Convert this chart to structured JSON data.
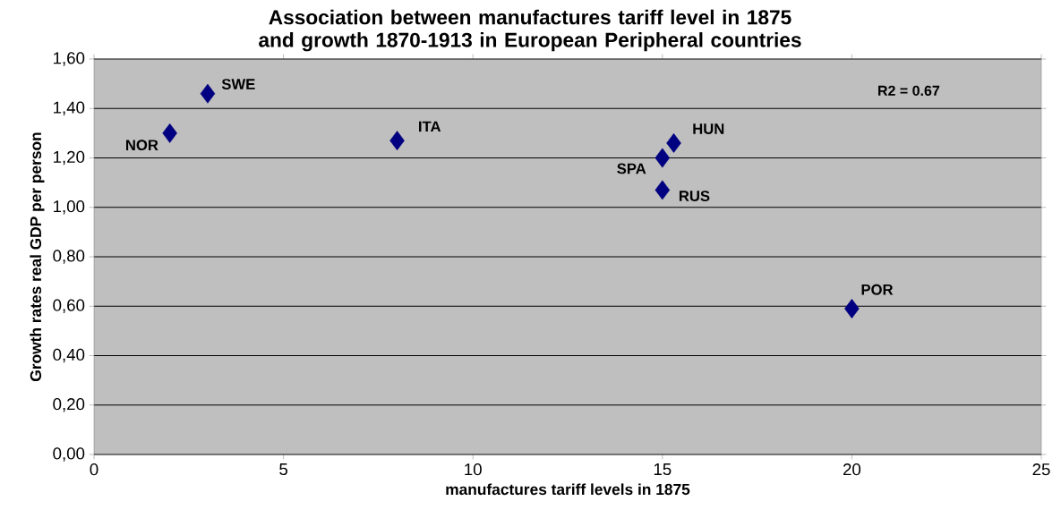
{
  "chart_data": {
    "type": "scatter",
    "title": "Association between manufactures tariff level in 1875 and growth 1870-1913 in European Peripheral countries",
    "xlabel": "manufactures tariff levels in 1875",
    "ylabel": "Growth rates real GDP per person",
    "x": [
      2,
      3,
      8,
      15.3,
      15,
      15,
      20
    ],
    "series": [
      {
        "color": "#000080",
        "values": [
          1.3,
          1.46,
          1.27,
          1.26,
          1.2,
          1.07,
          0.59
        ]
      }
    ],
    "marker": "diamond",
    "grid": "y",
    "xlim": [
      0,
      25
    ],
    "xticks": [
      0,
      5,
      10,
      15,
      20,
      25
    ],
    "ylim": [
      0,
      1.6
    ],
    "yticks": [
      {
        "value": 0,
        "label": "0,00"
      },
      {
        "value": 0.2,
        "label": "0,20"
      },
      {
        "value": 0.4,
        "label": "0,40"
      },
      {
        "value": 0.6,
        "label": "0,60"
      },
      {
        "value": 0.8,
        "label": "0,80"
      },
      {
        "value": 1.0,
        "label": "1,00"
      },
      {
        "value": 1.2,
        "label": "1,20"
      },
      {
        "value": 1.4,
        "label": "1,40"
      },
      {
        "value": 1.6,
        "label": "1,60"
      }
    ],
    "annotations": [
      {
        "text": "NOR",
        "x": 2,
        "y": 1.3
      },
      {
        "text": "SWE",
        "x": 3,
        "y": 1.46
      },
      {
        "text": "ITA",
        "x": 8,
        "y": 1.27
      },
      {
        "text": "HUN",
        "x": 15.3,
        "y": 1.26
      },
      {
        "text": "SPA",
        "x": 15,
        "y": 1.2
      },
      {
        "text": "RUS",
        "x": 15,
        "y": 1.07
      },
      {
        "text": "POR",
        "x": 20,
        "y": 0.59
      },
      "R2 = 0.67"
    ]
  }
}
